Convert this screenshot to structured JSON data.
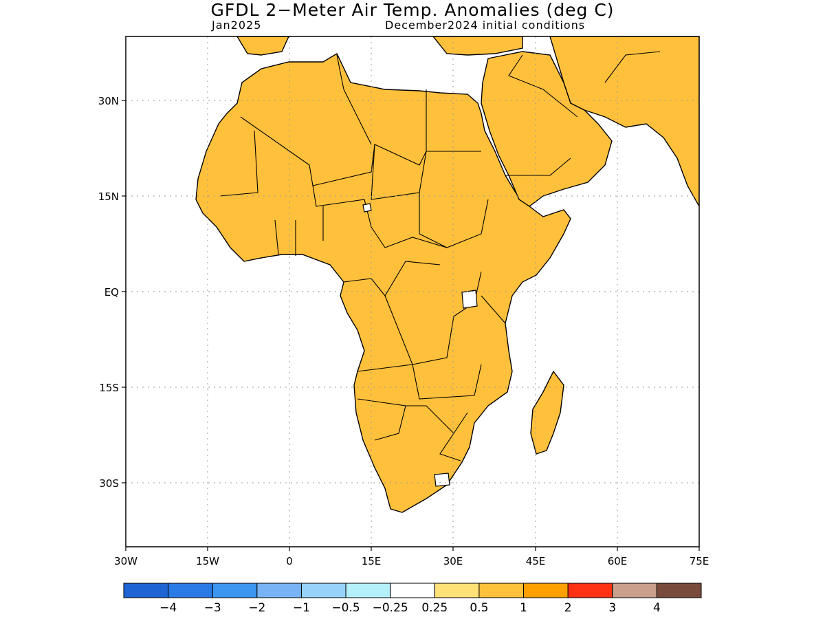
{
  "title": "GFDL 2−Meter Air Temp. Anomalies (deg C)",
  "subtitle_left": "Jan2025",
  "subtitle_right": "December2024 initial conditions",
  "lon_ticks": [
    "30W",
    "15W",
    "0",
    "15E",
    "30E",
    "45E",
    "60E",
    "75E"
  ],
  "lat_ticks": [
    "30N",
    "15N",
    "EQ",
    "15S",
    "30S"
  ],
  "colorbar": {
    "colors": [
      "#1e64d2",
      "#2a7ae6",
      "#3c96f0",
      "#78b4f5",
      "#96d2fa",
      "#b4f0fa",
      "#ffffff",
      "#ffe178",
      "#ffc03c",
      "#ffa000",
      "#ff3214",
      "#c8a08c",
      "#784b3c"
    ],
    "labels": [
      "−4",
      "−3",
      "−2",
      "−1",
      "−0.5",
      "−0.25",
      "0.25",
      "0.5",
      "1",
      "2",
      "3",
      "4"
    ]
  },
  "map": {
    "land_base_color": "#ffc03c",
    "ocean_color": "#ffffff",
    "anomaly_colors": {
      "strong_warm": "#ffa000",
      "hot": "#ff3214",
      "very_hot": "#c8a08c",
      "mild": "#ffe178",
      "near_zero": "#ffffff",
      "cool": "#b4f0fa",
      "cooler": "#96d2fa",
      "cold": "#78b4f5",
      "colder": "#3c96f0"
    }
  }
}
